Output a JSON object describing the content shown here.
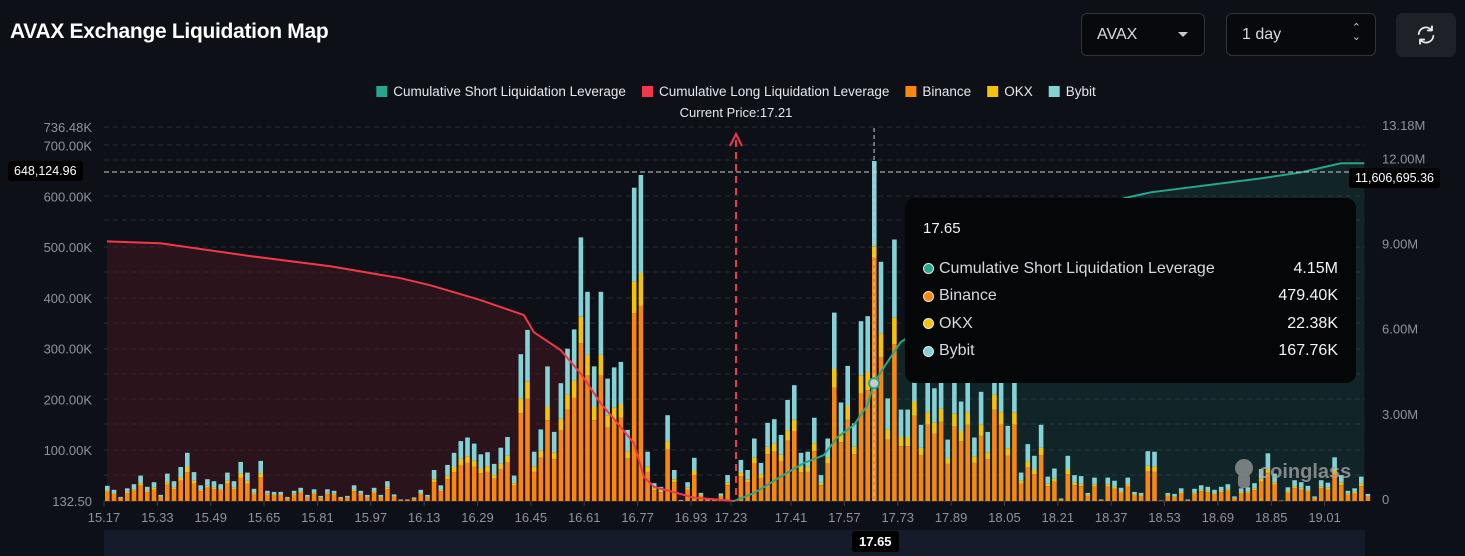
{
  "header": {
    "title": "AVAX Exchange Liquidation Map",
    "coin_select": "AVAX",
    "range_select": "1 day",
    "refresh_icon": "refresh-icon"
  },
  "legend": [
    {
      "label": "Cumulative Short Liquidation Leverage",
      "color": "#26a68a"
    },
    {
      "label": "Cumulative Long Liquidation Leverage",
      "color": "#f0384a"
    },
    {
      "label": "Binance",
      "color": "#f7870f"
    },
    {
      "label": "OKX",
      "color": "#f5c20a"
    },
    {
      "label": "Bybit",
      "color": "#82d2d6"
    }
  ],
  "current_price_label": "Current Price:17.21",
  "crosshair": {
    "left_value": "648,124.96",
    "right_value": "11,606,695.36",
    "x_value": "17.65"
  },
  "tooltip": {
    "title": "17.65",
    "rows": [
      {
        "label": "Cumulative Short Liquidation Leverage",
        "value": "4.15M",
        "color": "#26a68a"
      },
      {
        "label": "Binance",
        "value": "479.40K",
        "color": "#f7870f"
      },
      {
        "label": "OKX",
        "value": "22.38K",
        "color": "#f5c20a"
      },
      {
        "label": "Bybit",
        "value": "167.76K",
        "color": "#82d2d6"
      }
    ]
  },
  "watermark": "coinglass",
  "chart_data": {
    "type": "bar",
    "stacked": true,
    "current_price": 17.21,
    "y_left_ticks": [
      "736.48K",
      "700.00K",
      "600.00K",
      "500.00K",
      "400.00K",
      "300.00K",
      "200.00K",
      "100.00K",
      "132.50"
    ],
    "y_left_tick_values_k": [
      736.48,
      700,
      600,
      500,
      400,
      300,
      200,
      100,
      0
    ],
    "y_right_ticks": [
      "13.18M",
      "12.00M",
      "9.00M",
      "6.00M",
      "3.00M",
      "0"
    ],
    "y_right_tick_values_m": [
      13.18,
      12,
      9,
      6,
      3,
      0
    ],
    "y_left_range_k": [
      0,
      736.48
    ],
    "y_right_range_m": [
      0,
      13.18
    ],
    "x_ticks": [
      "15.17",
      "15.33",
      "15.49",
      "15.65",
      "15.81",
      "15.97",
      "16.13",
      "16.29",
      "16.45",
      "16.61",
      "16.77",
      "16.93",
      "17.23",
      "17.41",
      "17.57",
      "17.73",
      "17.89",
      "18.05",
      "18.21",
      "18.37",
      "18.53",
      "18.69",
      "18.85",
      "19.01"
    ],
    "grid": true,
    "legend_position": "top",
    "bar_unit": "K",
    "series": [
      {
        "name": "Binance",
        "values": [
          18,
          13,
          5,
          15,
          20,
          30,
          17,
          22,
          7,
          32,
          23,
          40,
          57,
          34,
          19,
          26,
          23,
          20,
          34,
          23,
          46,
          34,
          14,
          47,
          12,
          11,
          11,
          5,
          12,
          16,
          7,
          14,
          6,
          14,
          12,
          5,
          6,
          19,
          12,
          7,
          16,
          7,
          23,
          8,
          2,
          2,
          4,
          13,
          7,
          37,
          19,
          43,
          57,
          71,
          75,
          68,
          55,
          58,
          44,
          63,
          76,
          30,
          173,
          202,
          58,
          85,
          159,
          82,
          139,
          180,
          203,
          311,
          247,
          159,
          247,
          145,
          158,
          164,
          84,
          370,
          385,
          58,
          21,
          17,
          101,
          37,
          1,
          22,
          51,
          10,
          3,
          2,
          9,
          31,
          0,
          49,
          37,
          74,
          45,
          92,
          97,
          78,
          119,
          137,
          57,
          58,
          98,
          31,
          74,
          223,
          116,
          160,
          92,
          212,
          218,
          479.4,
          283,
          121,
          309,
          108,
          108,
          168,
          90,
          150,
          133,
          156,
          73,
          147,
          118,
          150,
          75,
          129,
          82,
          180,
          150,
          89,
          150,
          34,
          67,
          53,
          90,
          29,
          38,
          3,
          53,
          31,
          29,
          10,
          28,
          2,
          28,
          24,
          16,
          28,
          11,
          10,
          59,
          58,
          1,
          10,
          8,
          15,
          2,
          14,
          19,
          17,
          13,
          17,
          20,
          5,
          15,
          16,
          21,
          38,
          56,
          32,
          1,
          16,
          25,
          22,
          18,
          5,
          25,
          22,
          52,
          31,
          12,
          15,
          29,
          8
        ]
      },
      {
        "name": "OKX",
        "values": [
          3,
          2,
          1,
          3,
          3,
          5,
          3,
          4,
          1,
          5,
          4,
          7,
          10,
          6,
          3,
          4,
          4,
          3,
          6,
          4,
          8,
          6,
          2,
          8,
          2,
          2,
          2,
          1,
          2,
          3,
          1,
          2,
          1,
          2,
          2,
          1,
          1,
          3,
          2,
          1,
          3,
          1,
          4,
          1,
          0,
          0,
          1,
          2,
          1,
          6,
          3,
          7,
          10,
          12,
          13,
          11,
          9,
          10,
          7,
          11,
          13,
          5,
          29,
          34,
          10,
          14,
          27,
          14,
          23,
          30,
          34,
          52,
          41,
          27,
          41,
          24,
          26,
          27,
          14,
          62,
          64,
          10,
          4,
          3,
          17,
          6,
          0,
          4,
          9,
          2,
          1,
          0,
          2,
          5,
          0,
          8,
          6,
          12,
          8,
          15,
          16,
          13,
          20,
          23,
          10,
          10,
          16,
          5,
          12,
          37,
          19,
          27,
          15,
          35,
          36,
          22.38,
          47,
          20,
          52,
          18,
          18,
          28,
          15,
          25,
          22,
          26,
          12,
          25,
          20,
          25,
          13,
          22,
          14,
          30,
          25,
          15,
          25,
          6,
          11,
          9,
          15,
          5,
          6,
          1,
          9,
          5,
          5,
          2,
          5,
          0,
          5,
          4,
          3,
          5,
          2,
          2,
          10,
          10,
          0,
          2,
          1,
          3,
          0,
          2,
          3,
          3,
          2,
          3,
          3,
          1,
          3,
          3,
          4,
          6,
          9,
          5,
          0,
          3,
          4,
          4,
          3,
          1,
          4,
          4,
          9,
          5,
          2,
          3,
          5,
          1
        ]
      },
      {
        "name": "Bybit",
        "values": [
          9,
          7,
          2,
          7,
          10,
          15,
          8,
          11,
          4,
          17,
          12,
          20,
          28,
          17,
          9,
          13,
          12,
          10,
          16,
          12,
          23,
          16,
          8,
          24,
          6,
          5,
          5,
          2,
          6,
          7,
          4,
          7,
          3,
          7,
          6,
          2,
          3,
          9,
          6,
          4,
          7,
          4,
          12,
          4,
          1,
          1,
          2,
          7,
          4,
          18,
          9,
          21,
          28,
          35,
          37,
          34,
          28,
          28,
          22,
          31,
          37,
          15,
          87,
          101,
          29,
          42,
          79,
          40,
          70,
          90,
          101,
          156,
          124,
          79,
          124,
          72,
          79,
          83,
          42,
          185,
          193,
          29,
          10,
          8,
          51,
          18,
          1,
          11,
          25,
          4,
          1,
          1,
          4,
          15,
          0,
          24,
          18,
          37,
          22,
          47,
          48,
          39,
          60,
          68,
          28,
          29,
          50,
          15,
          37,
          111,
          59,
          79,
          46,
          107,
          110,
          167.76,
          141,
          61,
          154,
          54,
          54,
          84,
          45,
          75,
          67,
          78,
          36,
          73,
          58,
          75,
          37,
          64,
          40,
          90,
          75,
          44,
          75,
          16,
          34,
          27,
          45,
          14,
          20,
          1,
          27,
          15,
          15,
          4,
          13,
          1,
          13,
          12,
          7,
          13,
          5,
          4,
          29,
          29,
          0,
          4,
          5,
          7,
          1,
          8,
          9,
          8,
          7,
          8,
          10,
          3,
          7,
          8,
          10,
          19,
          29,
          17,
          0,
          8,
          12,
          11,
          9,
          3,
          12,
          10,
          25,
          15,
          6,
          7,
          14,
          5
        ]
      }
    ],
    "lines": [
      {
        "name": "Cumulative Long Liquidation Leverage",
        "axis": "right",
        "unit": "M",
        "points": [
          [
            15.17,
            9.15
          ],
          [
            15.33,
            9.08
          ],
          [
            15.6,
            8.63
          ],
          [
            15.84,
            8.27
          ],
          [
            16.05,
            7.85
          ],
          [
            16.14,
            7.6
          ],
          [
            16.29,
            7.08
          ],
          [
            16.42,
            6.55
          ],
          [
            16.45,
            5.95
          ],
          [
            16.53,
            5.32
          ],
          [
            16.59,
            4.5
          ],
          [
            16.65,
            3.45
          ],
          [
            16.7,
            2.75
          ],
          [
            16.75,
            2.04
          ],
          [
            16.78,
            0.85
          ],
          [
            16.81,
            0.5
          ],
          [
            16.93,
            0.12
          ],
          [
            17.23,
            0
          ]
        ]
      },
      {
        "name": "Cumulative Short Liquidation Leverage",
        "axis": "right",
        "unit": "M",
        "points": [
          [
            17.23,
            0
          ],
          [
            17.29,
            0.28
          ],
          [
            17.39,
            1.0
          ],
          [
            17.44,
            1.34
          ],
          [
            17.5,
            1.62
          ],
          [
            17.54,
            2.25
          ],
          [
            17.59,
            2.68
          ],
          [
            17.63,
            3.38
          ],
          [
            17.65,
            4.15
          ],
          [
            17.68,
            4.72
          ],
          [
            17.73,
            5.6
          ],
          [
            18.4,
            10.67
          ],
          [
            18.48,
            10.88
          ],
          [
            18.81,
            11.37
          ],
          [
            18.93,
            11.58
          ],
          [
            19.05,
            11.9
          ],
          [
            19.12,
            11.9
          ]
        ]
      }
    ]
  }
}
